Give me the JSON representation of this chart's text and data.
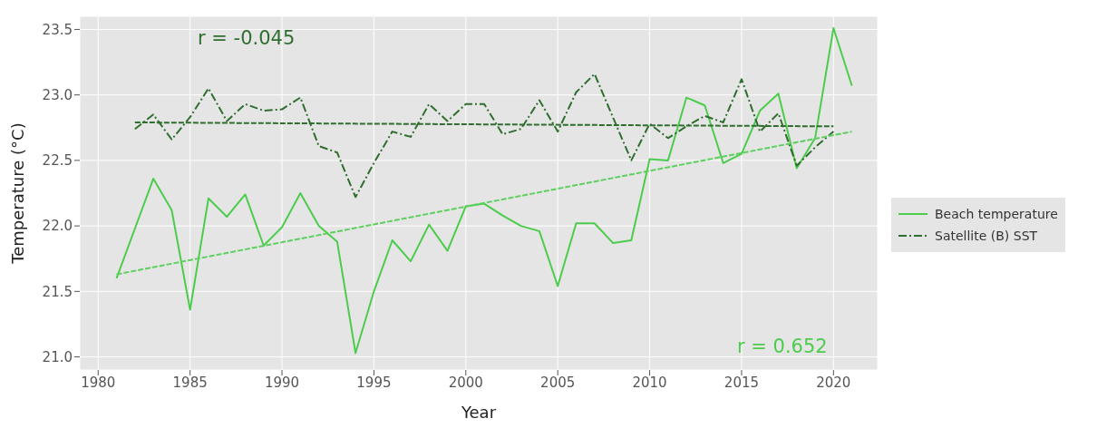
{
  "chart_data": {
    "type": "line",
    "xlabel": "Year",
    "ylabel": "Temperature (°C)",
    "xlim": [
      1979,
      2022.4
    ],
    "ylim": [
      20.9,
      23.6
    ],
    "xticks": [
      1980,
      1985,
      1990,
      1995,
      2000,
      2005,
      2010,
      2015,
      2020
    ],
    "yticks": [
      {
        "value": 21,
        "label": "21.0"
      },
      {
        "value": 21.5,
        "label": "21.5"
      },
      {
        "value": 22,
        "label": "22.0"
      },
      {
        "value": 22.5,
        "label": "22.5"
      },
      {
        "value": 23,
        "label": "23.0"
      },
      {
        "value": 23.5,
        "label": "23.5"
      }
    ],
    "grid": true,
    "legend": "right",
    "marker": "none",
    "annotations": [
      "r = -0.045",
      "r = 0.652"
    ],
    "series": [
      {
        "name": "Beach temperature",
        "color": "#4ccc4c",
        "line_style": "solid",
        "x": [
          1981,
          1982,
          1983,
          1984,
          1985,
          1986,
          1987,
          1988,
          1989,
          1990,
          1991,
          1992,
          1993,
          1994,
          1995,
          1996,
          1997,
          1998,
          1999,
          2000,
          2001,
          2002,
          2003,
          2004,
          2005,
          2006,
          2007,
          2008,
          2009,
          2010,
          2011,
          2012,
          2013,
          2014,
          2015,
          2016,
          2017,
          2018,
          2019,
          2020,
          2021
        ],
        "values": [
          21.6,
          21.98,
          22.36,
          22.12,
          21.36,
          22.21,
          22.07,
          22.24,
          21.85,
          21.99,
          22.25,
          22.0,
          21.88,
          21.03,
          21.5,
          21.89,
          21.73,
          22.01,
          21.81,
          22.15,
          22.17,
          22.08,
          22.0,
          21.96,
          21.54,
          22.02,
          22.02,
          21.87,
          21.89,
          22.51,
          22.5,
          22.98,
          22.92,
          22.48,
          22.55,
          22.88,
          23.01,
          22.44,
          22.67,
          23.51,
          23.07
        ]
      },
      {
        "name": "Satellite (B) SST",
        "color": "#2f6e2f",
        "line_style": "dashdot",
        "x": [
          1982,
          1983,
          1984,
          1985,
          1986,
          1987,
          1988,
          1989,
          1990,
          1991,
          1992,
          1993,
          1994,
          1995,
          1996,
          1997,
          1998,
          1999,
          2000,
          2001,
          2002,
          2003,
          2004,
          2005,
          2006,
          2007,
          2008,
          2009,
          2010,
          2011,
          2012,
          2013,
          2014,
          2015,
          2016,
          2017,
          2018,
          2019,
          2020
        ],
        "values": [
          22.74,
          22.85,
          22.66,
          22.83,
          23.05,
          22.8,
          22.93,
          22.88,
          22.89,
          22.98,
          22.61,
          22.56,
          22.22,
          22.48,
          22.72,
          22.68,
          22.93,
          22.8,
          22.93,
          22.93,
          22.7,
          22.74,
          22.96,
          22.72,
          23.02,
          23.16,
          22.83,
          22.5,
          22.78,
          22.67,
          22.76,
          22.84,
          22.79,
          23.12,
          22.72,
          22.86,
          22.46,
          22.6,
          22.72
        ]
      },
      {
        "color": "#5fd05f",
        "line_style": "dashed",
        "x": [
          1981,
          2021
        ],
        "values": [
          21.63,
          22.72
        ]
      },
      {
        "color": "#2f6e2f",
        "line_style": "dashed",
        "x": [
          1982,
          2020
        ],
        "values": [
          22.79,
          22.76
        ]
      }
    ]
  }
}
